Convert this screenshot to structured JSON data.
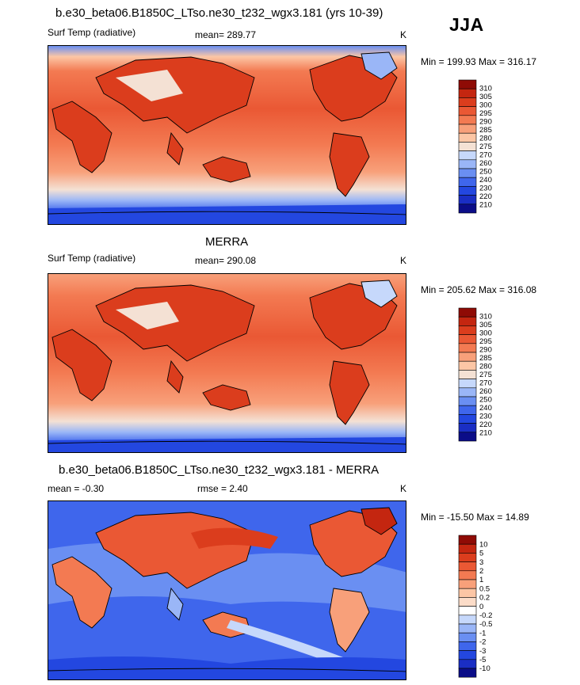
{
  "season": "JJA",
  "colors": {
    "abs": [
      "#0b0d88",
      "#1a2ec4",
      "#2347e0",
      "#3f66ec",
      "#6a8ff2",
      "#9ab6f7",
      "#c6d8fb",
      "#f4e1d4",
      "#fcc6a5",
      "#f8a07a",
      "#f37a52",
      "#ea5834",
      "#db3d1d",
      "#c42610",
      "#8f0b05"
    ],
    "diff": [
      "#0b0d88",
      "#1a2ec4",
      "#2347e0",
      "#3f66ec",
      "#6a8ff2",
      "#9ab6f7",
      "#c6d8fb",
      "#ffffff",
      "#fcdcc8",
      "#fcc6a5",
      "#f8a07a",
      "#f37a52",
      "#ea5834",
      "#db3d1d",
      "#c42610",
      "#8f0b05"
    ]
  },
  "panels": [
    {
      "id": "model",
      "title": "b.e30_beta06.B1850C_LTso.ne30_t232_wgx3.181 (yrs 10-39)",
      "variable": "Surf Temp (radiative)",
      "stat": "mean= 289.77",
      "stat2": "",
      "units": "K",
      "range": "Min = 199.93 Max = 316.17",
      "palette": "abs",
      "levels": [
        "310",
        "305",
        "300",
        "295",
        "290",
        "285",
        "280",
        "275",
        "270",
        "260",
        "250",
        "240",
        "230",
        "220",
        "210"
      ]
    },
    {
      "id": "obs",
      "title": "MERRA",
      "variable": "Surf Temp (radiative)",
      "stat": "mean= 290.08",
      "stat2": "",
      "units": "K",
      "range": "Min = 205.62 Max = 316.08",
      "palette": "abs",
      "levels": [
        "310",
        "305",
        "300",
        "295",
        "290",
        "285",
        "280",
        "275",
        "270",
        "260",
        "250",
        "240",
        "230",
        "220",
        "210"
      ]
    },
    {
      "id": "diff",
      "title": "b.e30_beta06.B1850C_LTso.ne30_t232_wgx3.181 - MERRA",
      "variable": "",
      "stat": "mean =  -0.30",
      "stat2": "rmse =   2.40",
      "units": "K",
      "range": "Min = -15.50 Max =  14.89",
      "palette": "diff",
      "levels": [
        "10",
        "5",
        "3",
        "2",
        "1",
        "0.5",
        "0.2",
        "0",
        "-0.2",
        "-0.5",
        "-1",
        "-2",
        "-3",
        "-5",
        "-10"
      ]
    }
  ],
  "chart_data": [
    {
      "type": "heatmap",
      "title": "b.e30_beta06.B1850C_LTso.ne30_t232_wgx3.181 (yrs 10-39)",
      "variable": "Surf Temp (radiative)",
      "units": "K",
      "mean": 289.77,
      "min": 199.93,
      "max": 316.17,
      "colorbar_levels": [
        210,
        220,
        230,
        240,
        250,
        260,
        270,
        275,
        280,
        285,
        290,
        295,
        300,
        305,
        310
      ]
    },
    {
      "type": "heatmap",
      "title": "MERRA",
      "variable": "Surf Temp (radiative)",
      "units": "K",
      "mean": 290.08,
      "min": 205.62,
      "max": 316.08,
      "colorbar_levels": [
        210,
        220,
        230,
        240,
        250,
        260,
        270,
        275,
        280,
        285,
        290,
        295,
        300,
        305,
        310
      ]
    },
    {
      "type": "heatmap",
      "title": "b.e30_beta06.B1850C_LTso.ne30_t232_wgx3.181 - MERRA",
      "units": "K",
      "mean": -0.3,
      "rmse": 2.4,
      "min": -15.5,
      "max": 14.89,
      "colorbar_levels": [
        -10,
        -5,
        -3,
        -2,
        -1,
        -0.5,
        -0.2,
        0,
        0.2,
        0.5,
        1,
        2,
        3,
        5,
        10
      ]
    }
  ]
}
